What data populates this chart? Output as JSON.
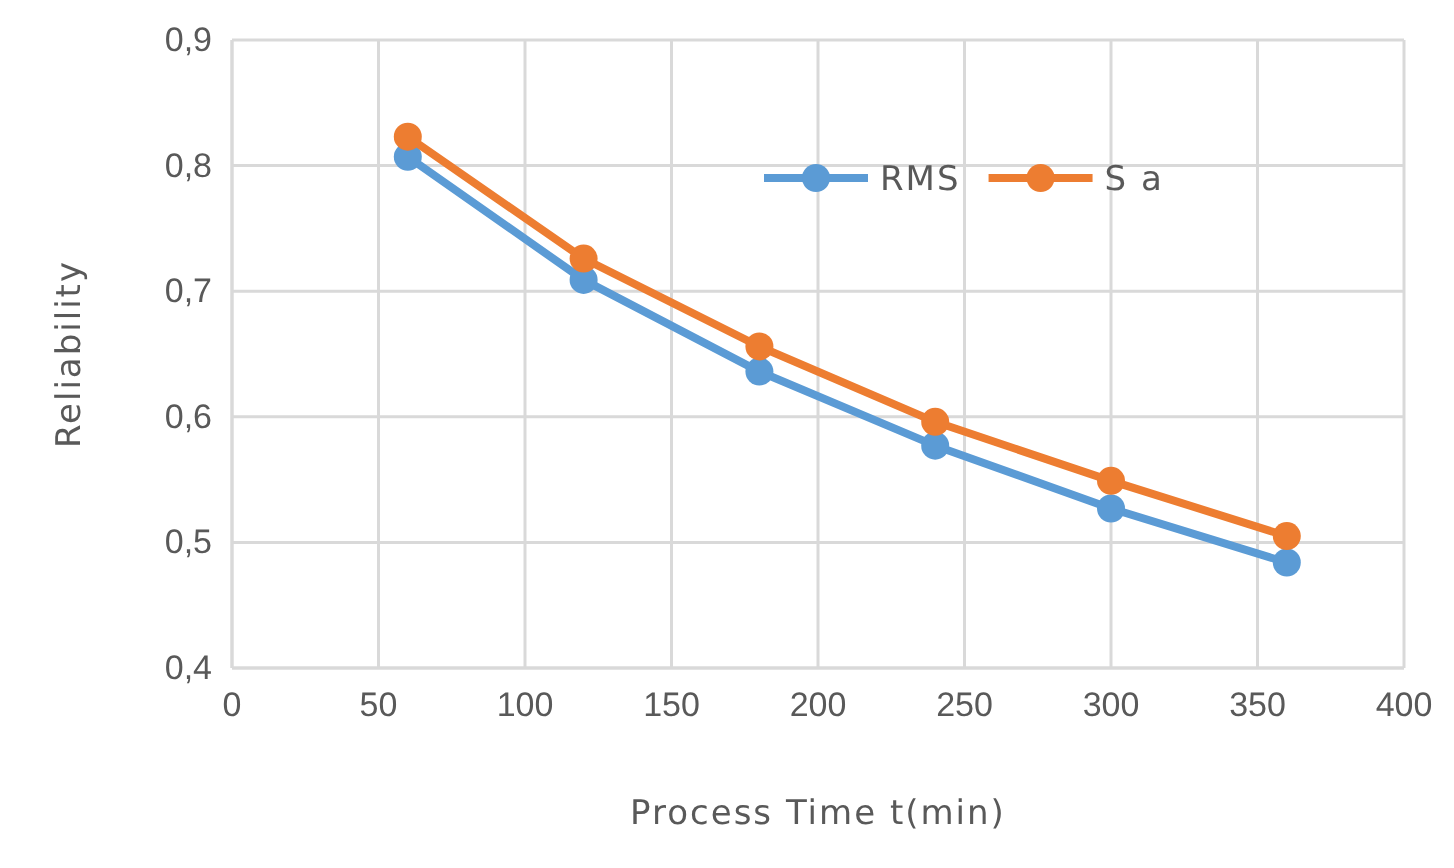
{
  "chart_data": {
    "type": "line",
    "xlabel": "Process Time t(min)",
    "ylabel": "Reliability",
    "x": [
      60,
      120,
      180,
      240,
      300,
      360
    ],
    "series": [
      {
        "name": "RMS",
        "color": "#5b9bd5",
        "values": [
          0.807,
          0.709,
          0.636,
          0.577,
          0.527,
          0.484
        ]
      },
      {
        "name": "S a",
        "color": "#ed7d31",
        "values": [
          0.823,
          0.726,
          0.656,
          0.596,
          0.549,
          0.505
        ]
      }
    ],
    "xlim": [
      0,
      400
    ],
    "xticks": [
      0,
      50,
      100,
      150,
      200,
      250,
      300,
      350,
      400
    ],
    "ylim": [
      0.4,
      0.9
    ],
    "yticks": [
      {
        "value": 0.4,
        "label": "0,4"
      },
      {
        "value": 0.5,
        "label": "0,5"
      },
      {
        "value": 0.6,
        "label": "0,6"
      },
      {
        "value": 0.7,
        "label": "0,7"
      },
      {
        "value": 0.8,
        "label": "0,8"
      },
      {
        "value": 0.9,
        "label": "0,9"
      }
    ],
    "grid": true,
    "legend": "top right",
    "marker": "circle",
    "line_style": "solid"
  }
}
